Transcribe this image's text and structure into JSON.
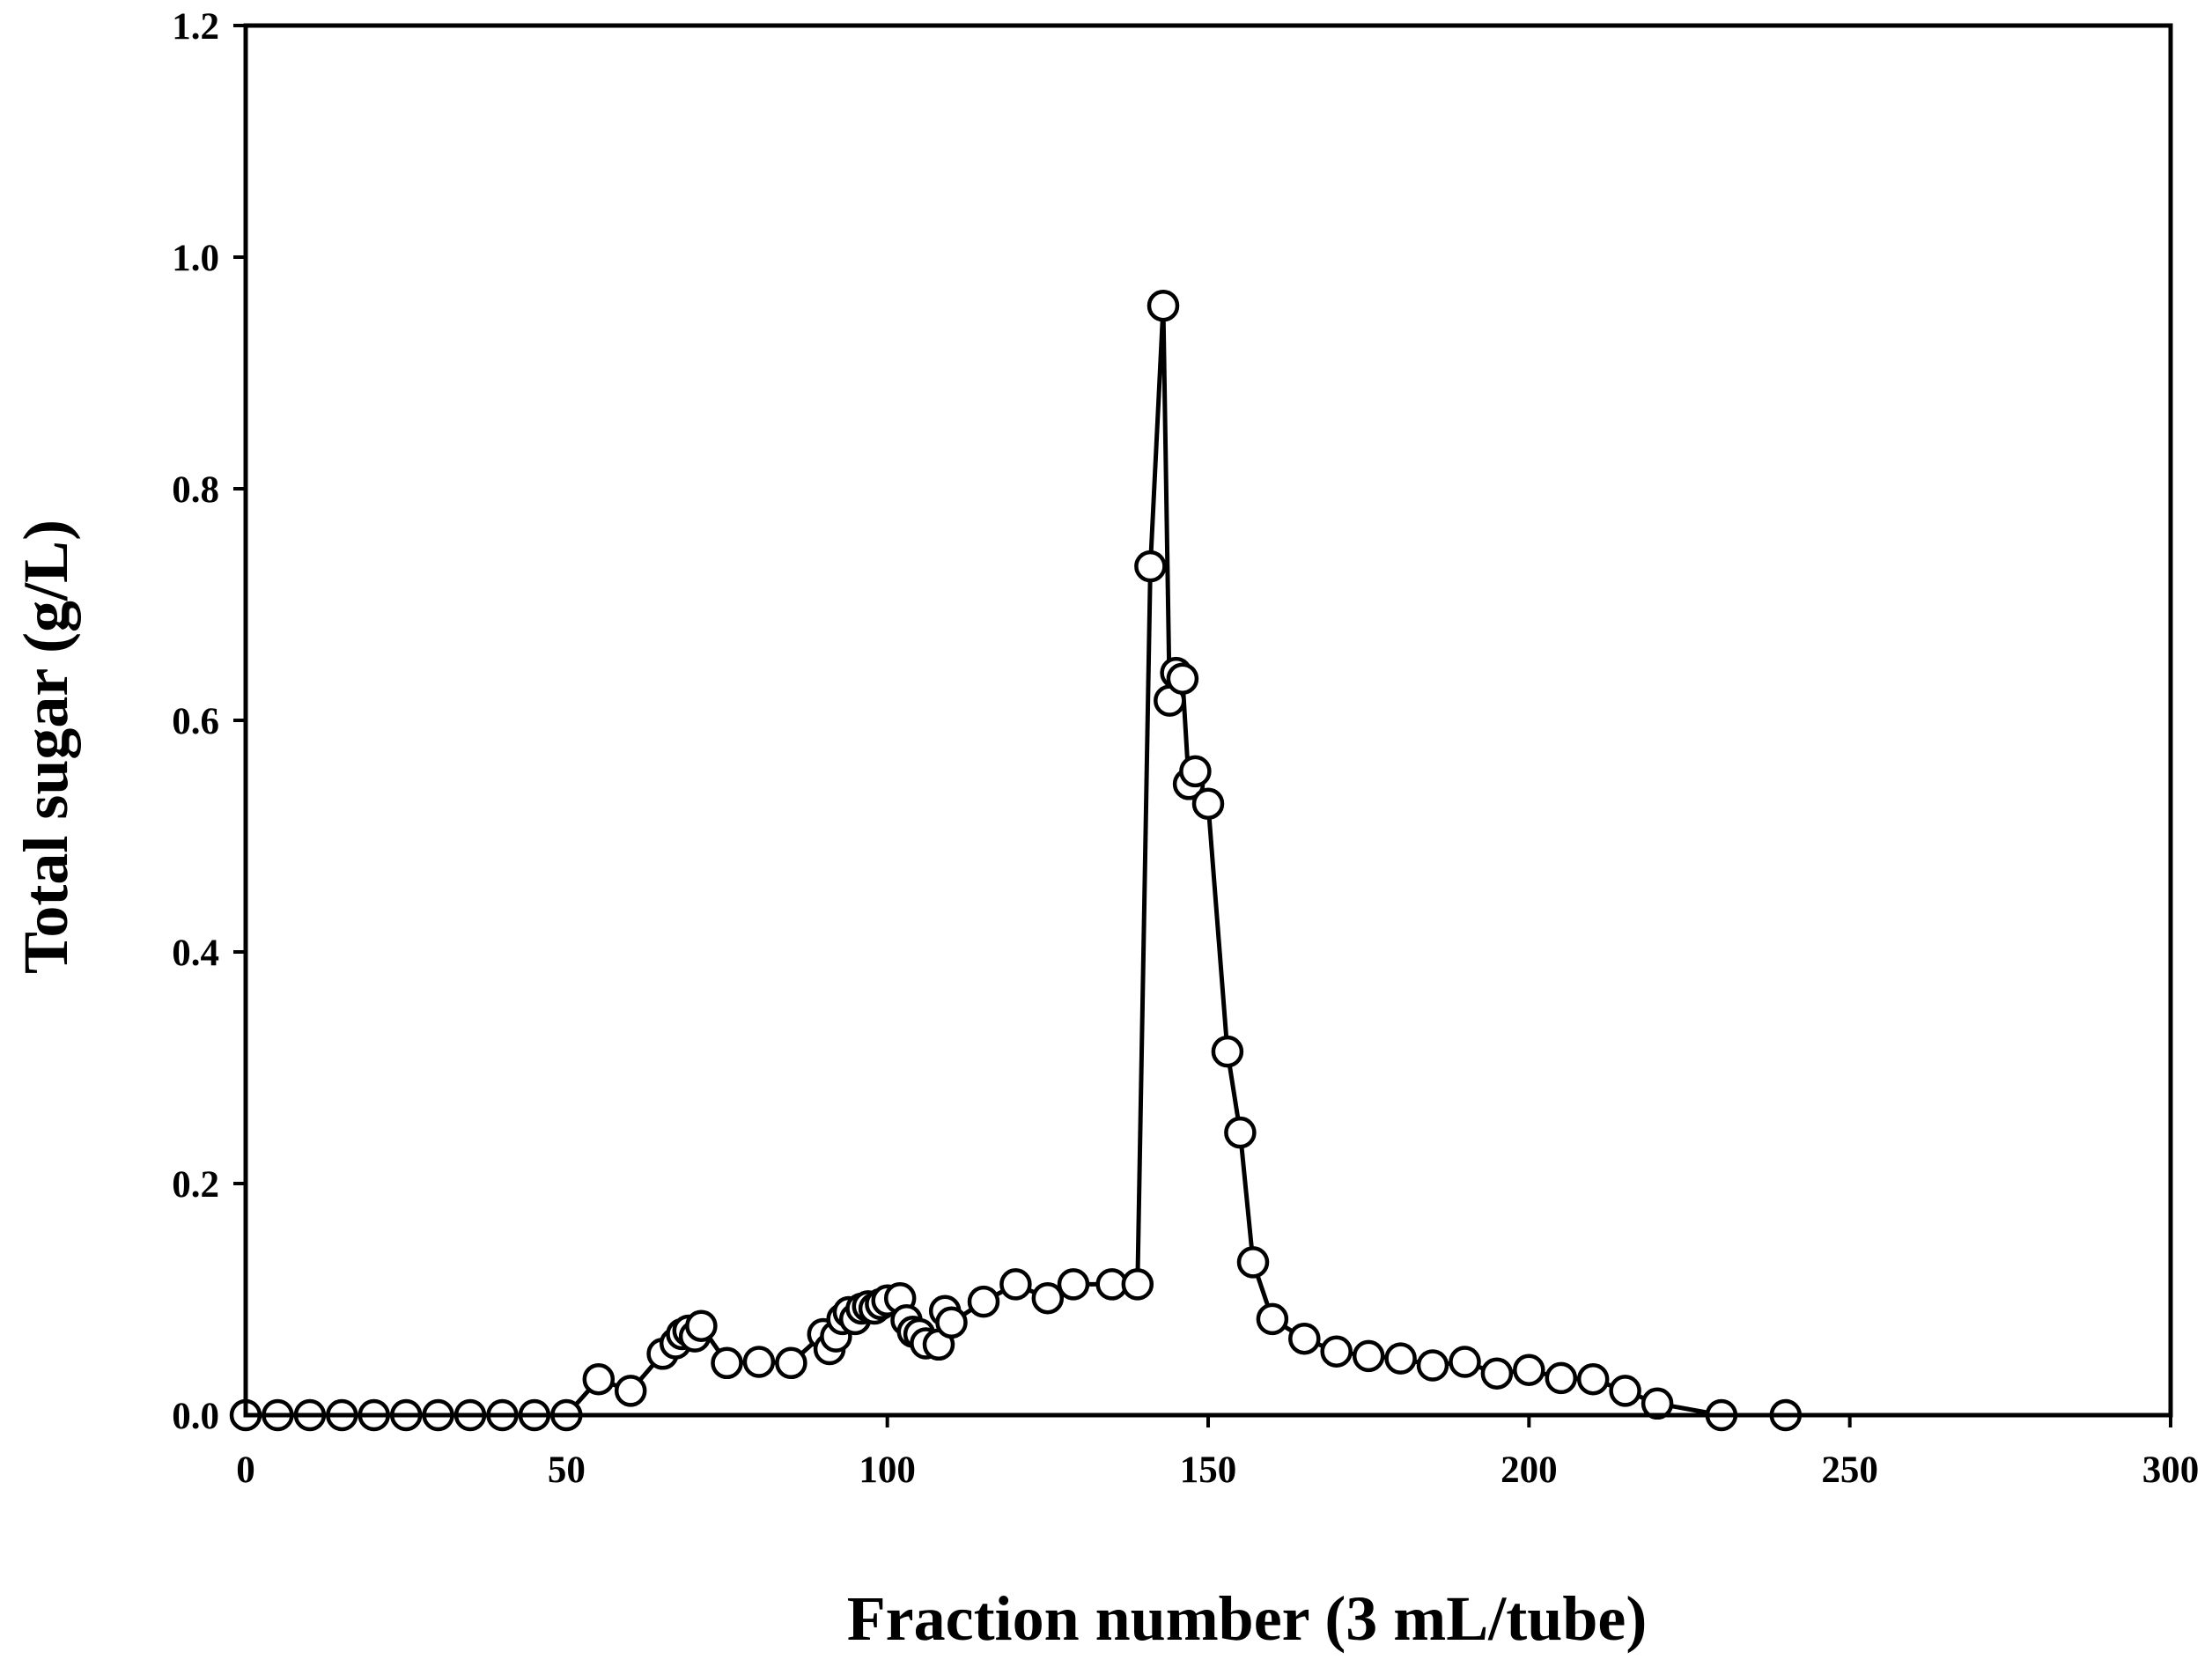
{
  "chart_data": {
    "type": "line",
    "title": "",
    "xlabel": "Fraction number (3 mL/tube)",
    "ylabel": "Total sugar (g/L)",
    "xlim": [
      0,
      300
    ],
    "ylim": [
      0,
      1.2
    ],
    "x_ticks": [
      0,
      50,
      100,
      150,
      200,
      250,
      300
    ],
    "x_tick_labels": [
      "0",
      "50",
      "100",
      "150",
      "200",
      "250",
      "300"
    ],
    "y_ticks": [
      0,
      0.2,
      0.4,
      0.6,
      0.8,
      1.0,
      1.2
    ],
    "y_tick_labels": [
      "0.0",
      "0.2",
      "0.4",
      "0.6",
      "0.8",
      "1.0",
      "1.2"
    ],
    "grid": false,
    "legend": "none",
    "marker": "open-circle",
    "line_color": "#000000",
    "series": [
      {
        "x": [
          0,
          5,
          10,
          15,
          20,
          25,
          30,
          35,
          40,
          45,
          50,
          55,
          60,
          65,
          67,
          68,
          69,
          70,
          71,
          75,
          80,
          85,
          90,
          91,
          92,
          93,
          94,
          95,
          96,
          97,
          98,
          99,
          100,
          102,
          103,
          104,
          105,
          106,
          108,
          109,
          110,
          115,
          120,
          125,
          129,
          135,
          139,
          141,
          143,
          144,
          145,
          146,
          147,
          148,
          150,
          153,
          155,
          157,
          160,
          165,
          170,
          175,
          180,
          185,
          190,
          195,
          200,
          205,
          210,
          215,
          220,
          230,
          240
        ],
        "y": [
          0,
          0,
          0,
          0,
          0,
          0,
          0,
          0,
          0,
          0,
          0,
          0.031,
          0.021,
          0.053,
          0.062,
          0.07,
          0.073,
          0.068,
          0.077,
          0.045,
          0.046,
          0.045,
          0.07,
          0.057,
          0.068,
          0.083,
          0.089,
          0.083,
          0.092,
          0.094,
          0.092,
          0.096,
          0.099,
          0.101,
          0.082,
          0.072,
          0.07,
          0.062,
          0.061,
          0.09,
          0.08,
          0.098,
          0.113,
          0.101,
          0.113,
          0.113,
          0.113,
          0.733,
          0.958,
          0.617,
          0.641,
          0.636,
          0.545,
          0.556,
          0.528,
          0.314,
          0.244,
          0.132,
          0.083,
          0.066,
          0.055,
          0.051,
          0.049,
          0.043,
          0.046,
          0.036,
          0.039,
          0.032,
          0.031,
          0.021,
          0.01,
          0,
          0
        ]
      }
    ]
  }
}
